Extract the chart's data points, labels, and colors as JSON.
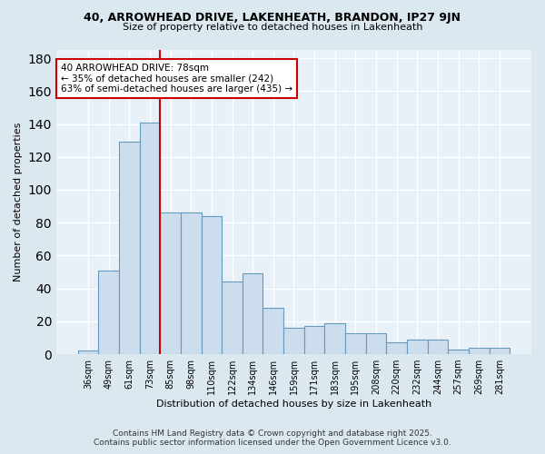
{
  "title1": "40, ARROWHEAD DRIVE, LAKENHEATH, BRANDON, IP27 9JN",
  "title2": "Size of property relative to detached houses in Lakenheath",
  "xlabel": "Distribution of detached houses by size in Lakenheath",
  "ylabel": "Number of detached properties",
  "categories": [
    "36sqm",
    "49sqm",
    "61sqm",
    "73sqm",
    "85sqm",
    "98sqm",
    "110sqm",
    "122sqm",
    "134sqm",
    "146sqm",
    "159sqm",
    "171sqm",
    "183sqm",
    "195sqm",
    "208sqm",
    "220sqm",
    "232sqm",
    "244sqm",
    "257sqm",
    "269sqm",
    "281sqm"
  ],
  "values": [
    2,
    51,
    129,
    141,
    86,
    86,
    84,
    44,
    49,
    28,
    16,
    17,
    19,
    13,
    13,
    7,
    9,
    9,
    3,
    4,
    4
  ],
  "bar_color": "#ccdded",
  "bar_edge_color": "#6699bb",
  "vline_x": 3.5,
  "vline_color": "#cc0000",
  "annotation_text": "40 ARROWHEAD DRIVE: 78sqm\n← 35% of detached houses are smaller (242)\n63% of semi-detached houses are larger (435) →",
  "annotation_box_color": "#ffffff",
  "annotation_box_edge": "#cc0000",
  "footer1": "Contains HM Land Registry data © Crown copyright and database right 2025.",
  "footer2": "Contains public sector information licensed under the Open Government Licence v3.0.",
  "bg_color": "#dce8f0",
  "plot_bg_color": "#e8f0f8",
  "grid_color": "#ffffff",
  "ylim": [
    0,
    185
  ],
  "yticks": [
    0,
    20,
    40,
    60,
    80,
    100,
    120,
    140,
    160,
    180
  ]
}
